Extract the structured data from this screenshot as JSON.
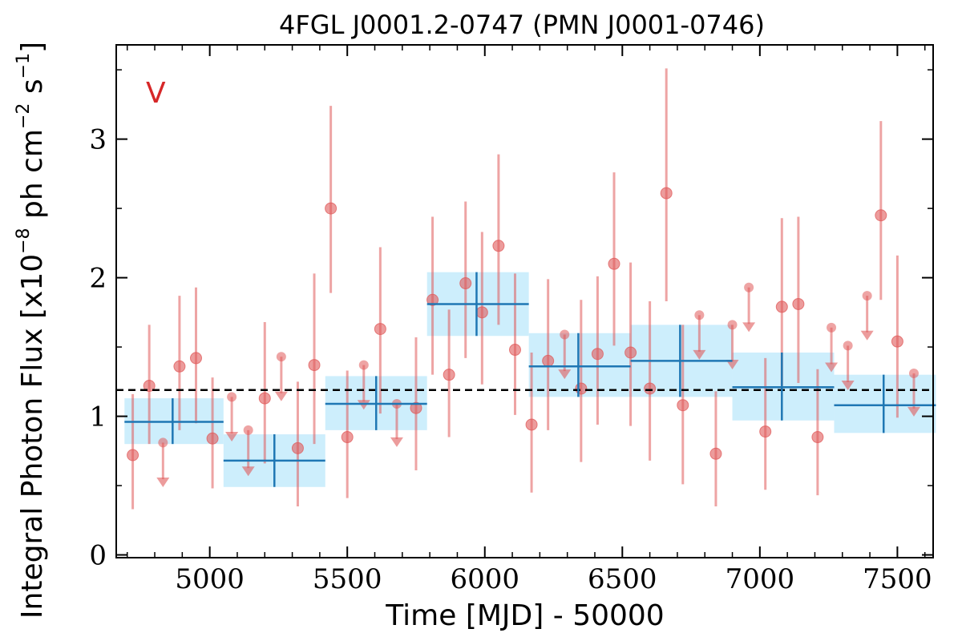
{
  "chart_data": {
    "type": "scatter",
    "title": "4FGL J0001.2-0747 (PMN J0001-0746)",
    "xlabel": "Time [MJD] - 50000",
    "ylabel": {
      "prefix": "Integral Photon Flux [x10",
      "exp1": "−8",
      "mid": " ph cm",
      "exp2": "−2",
      "mid2": " s",
      "exp3": "−1",
      "suffix": "]"
    },
    "annotation": "V",
    "xlim": [
      4660,
      7630
    ],
    "ylim": [
      -0.02,
      3.68
    ],
    "x_ticks": [
      5000,
      5500,
      6000,
      6500,
      7000,
      7500
    ],
    "y_ticks": [
      0,
      1,
      2,
      3
    ],
    "grid": false,
    "mean_level": 1.19,
    "colors": {
      "points": "#e05a5a",
      "bins": "#1f77b4",
      "band": "#cdeefc",
      "mean": "#000000",
      "annotation": "#d62728"
    },
    "series": [
      {
        "kind": "points",
        "values": [
          {
            "x": 4720,
            "y": 0.72,
            "lo": 0.33,
            "hi": 1.16
          },
          {
            "x": 4780,
            "y": 1.22,
            "lo": 0.8,
            "hi": 1.66
          },
          {
            "x": 4890,
            "y": 1.36,
            "lo": 0.9,
            "hi": 1.87
          },
          {
            "x": 4950,
            "y": 1.42,
            "lo": 0.95,
            "hi": 1.93
          },
          {
            "x": 5010,
            "y": 0.84,
            "lo": 0.48,
            "hi": 1.28
          },
          {
            "x": 5200,
            "y": 1.13,
            "lo": 0.66,
            "hi": 1.68
          },
          {
            "x": 5320,
            "y": 0.77,
            "lo": 0.35,
            "hi": 1.25
          },
          {
            "x": 5380,
            "y": 1.37,
            "lo": 0.8,
            "hi": 2.03
          },
          {
            "x": 5440,
            "y": 2.5,
            "lo": 1.89,
            "hi": 3.24
          },
          {
            "x": 5500,
            "y": 0.85,
            "lo": 0.41,
            "hi": 1.33
          },
          {
            "x": 5620,
            "y": 1.63,
            "lo": 1.02,
            "hi": 2.22
          },
          {
            "x": 5750,
            "y": 1.06,
            "lo": 0.61,
            "hi": 1.57
          },
          {
            "x": 5810,
            "y": 1.84,
            "lo": 1.3,
            "hi": 2.44
          },
          {
            "x": 5870,
            "y": 1.3,
            "lo": 0.85,
            "hi": 1.77
          },
          {
            "x": 5930,
            "y": 1.96,
            "lo": 1.42,
            "hi": 2.55
          },
          {
            "x": 5990,
            "y": 1.75,
            "lo": 1.23,
            "hi": 2.33
          },
          {
            "x": 6050,
            "y": 2.23,
            "lo": 1.66,
            "hi": 2.89
          },
          {
            "x": 6110,
            "y": 1.48,
            "lo": 1.01,
            "hi": 2.03
          },
          {
            "x": 6170,
            "y": 0.94,
            "lo": 0.45,
            "hi": 1.46
          },
          {
            "x": 6230,
            "y": 1.4,
            "lo": 0.9,
            "hi": 1.99
          },
          {
            "x": 6350,
            "y": 1.2,
            "lo": 0.67,
            "hi": 1.84
          },
          {
            "x": 6410,
            "y": 1.45,
            "lo": 0.94,
            "hi": 2.01
          },
          {
            "x": 6470,
            "y": 2.1,
            "lo": 1.51,
            "hi": 2.76
          },
          {
            "x": 6530,
            "y": 1.46,
            "lo": 0.93,
            "hi": 2.11
          },
          {
            "x": 6600,
            "y": 1.2,
            "lo": 0.68,
            "hi": 1.83
          },
          {
            "x": 6660,
            "y": 2.61,
            "lo": 1.83,
            "hi": 3.51
          },
          {
            "x": 6720,
            "y": 1.08,
            "lo": 0.51,
            "hi": 1.66
          },
          {
            "x": 6840,
            "y": 0.73,
            "lo": 0.35,
            "hi": 1.18
          },
          {
            "x": 7020,
            "y": 0.89,
            "lo": 0.47,
            "hi": 1.42
          },
          {
            "x": 7080,
            "y": 1.79,
            "lo": 1.22,
            "hi": 2.43
          },
          {
            "x": 7140,
            "y": 1.81,
            "lo": 1.24,
            "hi": 2.44
          },
          {
            "x": 7210,
            "y": 0.85,
            "lo": 0.43,
            "hi": 1.34
          },
          {
            "x": 7440,
            "y": 2.45,
            "lo": 1.84,
            "hi": 3.13
          },
          {
            "x": 7500,
            "y": 1.54,
            "lo": 0.99,
            "hi": 2.16
          }
        ]
      },
      {
        "kind": "upper_limits",
        "values": [
          {
            "x": 4830,
            "y": 0.81,
            "to": 0.5
          },
          {
            "x": 5080,
            "y": 1.14,
            "to": 0.83
          },
          {
            "x": 5140,
            "y": 0.9,
            "to": 0.58
          },
          {
            "x": 5260,
            "y": 1.43,
            "to": 1.12
          },
          {
            "x": 5560,
            "y": 1.37,
            "to": 1.06
          },
          {
            "x": 5680,
            "y": 1.09,
            "to": 0.79
          },
          {
            "x": 6290,
            "y": 1.59,
            "to": 1.28
          },
          {
            "x": 6780,
            "y": 1.73,
            "to": 1.42
          },
          {
            "x": 6900,
            "y": 1.66,
            "to": 1.35
          },
          {
            "x": 6960,
            "y": 1.93,
            "to": 1.62
          },
          {
            "x": 7260,
            "y": 1.64,
            "to": 1.33
          },
          {
            "x": 7320,
            "y": 1.51,
            "to": 1.2
          },
          {
            "x": 7390,
            "y": 1.87,
            "to": 1.56
          },
          {
            "x": 7560,
            "y": 1.31,
            "to": 1.01
          }
        ]
      },
      {
        "kind": "binned",
        "values": [
          {
            "x0": 4690,
            "x1": 5050,
            "x": 4865,
            "y": 0.96,
            "lo": 0.8,
            "hi": 1.13
          },
          {
            "x0": 5050,
            "x1": 5420,
            "x": 5235,
            "y": 0.68,
            "lo": 0.49,
            "hi": 0.87
          },
          {
            "x0": 5420,
            "x1": 5790,
            "x": 5605,
            "y": 1.09,
            "lo": 0.9,
            "hi": 1.29
          },
          {
            "x0": 5790,
            "x1": 6160,
            "x": 5970,
            "y": 1.81,
            "lo": 1.58,
            "hi": 2.04
          },
          {
            "x0": 6160,
            "x1": 6530,
            "x": 6340,
            "y": 1.36,
            "lo": 1.14,
            "hi": 1.6
          },
          {
            "x0": 6530,
            "x1": 6900,
            "x": 6710,
            "y": 1.4,
            "lo": 1.14,
            "hi": 1.66
          },
          {
            "x0": 6900,
            "x1": 7270,
            "x": 7080,
            "y": 1.21,
            "lo": 0.97,
            "hi": 1.46
          },
          {
            "x0": 7270,
            "x1": 7640,
            "x": 7450,
            "y": 1.08,
            "lo": 0.88,
            "hi": 1.3
          }
        ]
      }
    ]
  }
}
